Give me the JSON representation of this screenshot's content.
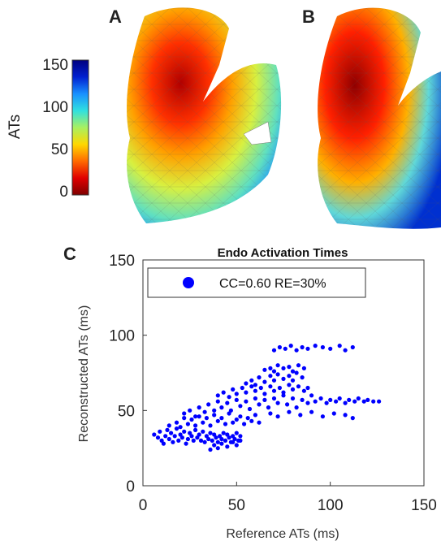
{
  "panels": {
    "a_letter": "A",
    "b_letter": "B",
    "c_letter": "C"
  },
  "colorbar": {
    "label": "ATs",
    "ticks": [
      "150",
      "100",
      "50",
      "0"
    ],
    "range": [
      0,
      150
    ],
    "colormap": [
      "#7f0000",
      "#e00000",
      "#ff6a00",
      "#ffd800",
      "#a8f060",
      "#30e0e0",
      "#1890ff",
      "#0020d0",
      "#00007f"
    ]
  },
  "chart_data": {
    "type": "scatter",
    "title": "Endo Activation Times",
    "xlabel": "Reference ATs (ms)",
    "ylabel": "Reconstructed ATs (ms)",
    "xlim": [
      0,
      150
    ],
    "ylim": [
      0,
      150
    ],
    "xticks": [
      "0",
      "50",
      "100",
      "150"
    ],
    "yticks": [
      "0",
      "50",
      "100",
      "150"
    ],
    "grid": false,
    "legend": {
      "placement": "top-left",
      "entry": "CC=0.60 RE=30%"
    },
    "series": [
      {
        "name": "CC=0.60 RE=30%",
        "color": "#0000ff",
        "points": [
          [
            6,
            34
          ],
          [
            8,
            32
          ],
          [
            9,
            36
          ],
          [
            10,
            30
          ],
          [
            11,
            28
          ],
          [
            12,
            33
          ],
          [
            13,
            37
          ],
          [
            14,
            31
          ],
          [
            15,
            35
          ],
          [
            16,
            29
          ],
          [
            17,
            33
          ],
          [
            18,
            38
          ],
          [
            19,
            30
          ],
          [
            20,
            34
          ],
          [
            21,
            32
          ],
          [
            22,
            36
          ],
          [
            23,
            28
          ],
          [
            24,
            31
          ],
          [
            25,
            35
          ],
          [
            26,
            33
          ],
          [
            27,
            30
          ],
          [
            28,
            37
          ],
          [
            29,
            32
          ],
          [
            30,
            34
          ],
          [
            31,
            30
          ],
          [
            32,
            36
          ],
          [
            33,
            29
          ],
          [
            34,
            33
          ],
          [
            35,
            31
          ],
          [
            36,
            35
          ],
          [
            37,
            30
          ],
          [
            38,
            34
          ],
          [
            39,
            32
          ],
          [
            40,
            29
          ],
          [
            41,
            33
          ],
          [
            42,
            31
          ],
          [
            43,
            35
          ],
          [
            44,
            30
          ],
          [
            45,
            34
          ],
          [
            46,
            32
          ],
          [
            47,
            29
          ],
          [
            48,
            33
          ],
          [
            49,
            31
          ],
          [
            50,
            35
          ],
          [
            51,
            30
          ],
          [
            52,
            33
          ],
          [
            14,
            40
          ],
          [
            18,
            42
          ],
          [
            20,
            39
          ],
          [
            22,
            45
          ],
          [
            24,
            41
          ],
          [
            26,
            44
          ],
          [
            28,
            40
          ],
          [
            30,
            46
          ],
          [
            32,
            42
          ],
          [
            34,
            45
          ],
          [
            36,
            40
          ],
          [
            38,
            47
          ],
          [
            40,
            43
          ],
          [
            42,
            45
          ],
          [
            44,
            41
          ],
          [
            46,
            48
          ],
          [
            48,
            42
          ],
          [
            50,
            44
          ],
          [
            52,
            46
          ],
          [
            54,
            41
          ],
          [
            56,
            45
          ],
          [
            58,
            43
          ],
          [
            60,
            47
          ],
          [
            62,
            42
          ],
          [
            22,
            48
          ],
          [
            25,
            50
          ],
          [
            28,
            46
          ],
          [
            30,
            52
          ],
          [
            33,
            49
          ],
          [
            35,
            54
          ],
          [
            38,
            50
          ],
          [
            40,
            56
          ],
          [
            42,
            52
          ],
          [
            45,
            55
          ],
          [
            47,
            50
          ],
          [
            50,
            57
          ],
          [
            52,
            53
          ],
          [
            55,
            56
          ],
          [
            57,
            51
          ],
          [
            60,
            58
          ],
          [
            62,
            54
          ],
          [
            65,
            57
          ],
          [
            67,
            52
          ],
          [
            70,
            58
          ],
          [
            72,
            55
          ],
          [
            75,
            60
          ],
          [
            77,
            54
          ],
          [
            80,
            58
          ],
          [
            82,
            52
          ],
          [
            85,
            57
          ],
          [
            88,
            55
          ],
          [
            90,
            60
          ],
          [
            92,
            56
          ],
          [
            95,
            58
          ],
          [
            98,
            55
          ],
          [
            100,
            57
          ],
          [
            103,
            56
          ],
          [
            105,
            58
          ],
          [
            108,
            55
          ],
          [
            110,
            57
          ],
          [
            113,
            56
          ],
          [
            115,
            58
          ],
          [
            118,
            56
          ],
          [
            120,
            57
          ],
          [
            123,
            56
          ],
          [
            126,
            56
          ],
          [
            40,
            60
          ],
          [
            43,
            62
          ],
          [
            46,
            59
          ],
          [
            48,
            64
          ],
          [
            50,
            61
          ],
          [
            53,
            65
          ],
          [
            55,
            62
          ],
          [
            58,
            66
          ],
          [
            60,
            63
          ],
          [
            63,
            65
          ],
          [
            65,
            61
          ],
          [
            68,
            66
          ],
          [
            70,
            63
          ],
          [
            73,
            65
          ],
          [
            75,
            62
          ],
          [
            78,
            67
          ],
          [
            80,
            64
          ],
          [
            83,
            66
          ],
          [
            86,
            63
          ],
          [
            88,
            65
          ],
          [
            55,
            68
          ],
          [
            58,
            70
          ],
          [
            60,
            67
          ],
          [
            62,
            72
          ],
          [
            65,
            69
          ],
          [
            68,
            73
          ],
          [
            70,
            70
          ],
          [
            72,
            74
          ],
          [
            75,
            71
          ],
          [
            78,
            73
          ],
          [
            80,
            70
          ],
          [
            82,
            75
          ],
          [
            85,
            72
          ],
          [
            65,
            77
          ],
          [
            68,
            78
          ],
          [
            70,
            76
          ],
          [
            72,
            80
          ],
          [
            75,
            78
          ],
          [
            78,
            79
          ],
          [
            80,
            76
          ],
          [
            83,
            80
          ],
          [
            86,
            78
          ],
          [
            70,
            90
          ],
          [
            73,
            92
          ],
          [
            76,
            91
          ],
          [
            79,
            93
          ],
          [
            82,
            90
          ],
          [
            85,
            92
          ],
          [
            88,
            91
          ],
          [
            92,
            93
          ],
          [
            96,
            92
          ],
          [
            100,
            91
          ],
          [
            105,
            93
          ],
          [
            108,
            90
          ],
          [
            112,
            92
          ],
          [
            36,
            24
          ],
          [
            38,
            27
          ],
          [
            40,
            25
          ],
          [
            42,
            28
          ],
          [
            45,
            26
          ],
          [
            48,
            29
          ],
          [
            50,
            27
          ],
          [
            52,
            30
          ],
          [
            68,
            48
          ],
          [
            72,
            46
          ],
          [
            78,
            49
          ],
          [
            84,
            47
          ],
          [
            90,
            49
          ],
          [
            96,
            46
          ],
          [
            102,
            48
          ],
          [
            108,
            47
          ],
          [
            112,
            45
          ]
        ]
      }
    ]
  }
}
